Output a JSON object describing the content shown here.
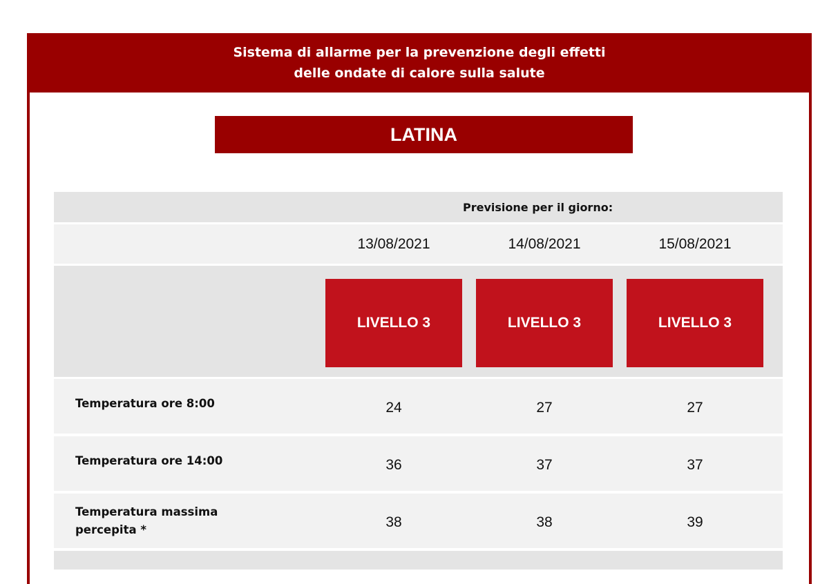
{
  "header": {
    "line1": "Sistema di allarme per la prevenzione degli effetti",
    "line2": "delle ondate di calore sulla salute"
  },
  "city": "LATINA",
  "forecast_label": "Previsione per il giorno:",
  "dates": [
    "13/08/2021",
    "14/08/2021",
    "15/08/2021"
  ],
  "levels": [
    "LIVELLO 3",
    "LIVELLO 3",
    "LIVELLO 3"
  ],
  "colors": {
    "banner": "#990000",
    "level_box": "#c1121c",
    "row_dark": "#e4e4e4",
    "row_light": "#f2f2f2"
  },
  "rows": [
    {
      "label": "Temperatura ore 8:00",
      "values": [
        "24",
        "27",
        "27"
      ]
    },
    {
      "label": "Temperatura ore 14:00",
      "values": [
        "36",
        "37",
        "37"
      ]
    },
    {
      "label_line1": "Temperatura massima",
      "label_line2": "percepita *",
      "values": [
        "38",
        "38",
        "39"
      ]
    }
  ]
}
